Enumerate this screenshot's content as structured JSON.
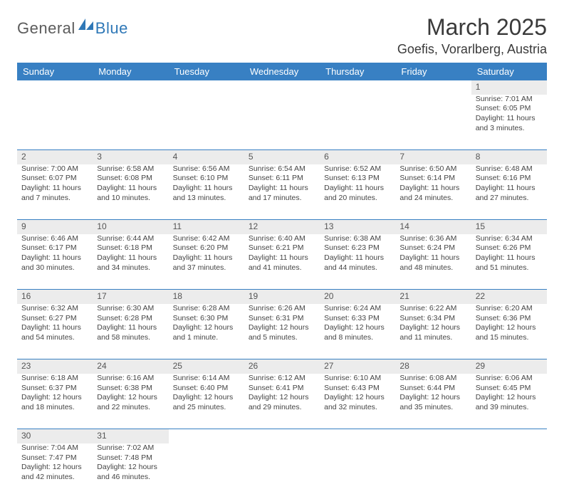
{
  "brand": {
    "part1": "General",
    "part2": "Blue"
  },
  "title": "March 2025",
  "location": "Goefis, Vorarlberg, Austria",
  "colors": {
    "header_bg": "#3880c3",
    "grey_row": "#ececec",
    "brand_blue": "#2f78b7",
    "text": "#3a3a3a"
  },
  "weekdays": [
    "Sunday",
    "Monday",
    "Tuesday",
    "Wednesday",
    "Thursday",
    "Friday",
    "Saturday"
  ],
  "weeks": [
    {
      "nums": [
        "",
        "",
        "",
        "",
        "",
        "",
        "1"
      ],
      "cells": [
        null,
        null,
        null,
        null,
        null,
        null,
        {
          "sunrise": "Sunrise: 7:01 AM",
          "sunset": "Sunset: 6:05 PM",
          "daylight": "Daylight: 11 hours and 3 minutes."
        }
      ]
    },
    {
      "nums": [
        "2",
        "3",
        "4",
        "5",
        "6",
        "7",
        "8"
      ],
      "cells": [
        {
          "sunrise": "Sunrise: 7:00 AM",
          "sunset": "Sunset: 6:07 PM",
          "daylight": "Daylight: 11 hours and 7 minutes."
        },
        {
          "sunrise": "Sunrise: 6:58 AM",
          "sunset": "Sunset: 6:08 PM",
          "daylight": "Daylight: 11 hours and 10 minutes."
        },
        {
          "sunrise": "Sunrise: 6:56 AM",
          "sunset": "Sunset: 6:10 PM",
          "daylight": "Daylight: 11 hours and 13 minutes."
        },
        {
          "sunrise": "Sunrise: 6:54 AM",
          "sunset": "Sunset: 6:11 PM",
          "daylight": "Daylight: 11 hours and 17 minutes."
        },
        {
          "sunrise": "Sunrise: 6:52 AM",
          "sunset": "Sunset: 6:13 PM",
          "daylight": "Daylight: 11 hours and 20 minutes."
        },
        {
          "sunrise": "Sunrise: 6:50 AM",
          "sunset": "Sunset: 6:14 PM",
          "daylight": "Daylight: 11 hours and 24 minutes."
        },
        {
          "sunrise": "Sunrise: 6:48 AM",
          "sunset": "Sunset: 6:16 PM",
          "daylight": "Daylight: 11 hours and 27 minutes."
        }
      ]
    },
    {
      "nums": [
        "9",
        "10",
        "11",
        "12",
        "13",
        "14",
        "15"
      ],
      "cells": [
        {
          "sunrise": "Sunrise: 6:46 AM",
          "sunset": "Sunset: 6:17 PM",
          "daylight": "Daylight: 11 hours and 30 minutes."
        },
        {
          "sunrise": "Sunrise: 6:44 AM",
          "sunset": "Sunset: 6:18 PM",
          "daylight": "Daylight: 11 hours and 34 minutes."
        },
        {
          "sunrise": "Sunrise: 6:42 AM",
          "sunset": "Sunset: 6:20 PM",
          "daylight": "Daylight: 11 hours and 37 minutes."
        },
        {
          "sunrise": "Sunrise: 6:40 AM",
          "sunset": "Sunset: 6:21 PM",
          "daylight": "Daylight: 11 hours and 41 minutes."
        },
        {
          "sunrise": "Sunrise: 6:38 AM",
          "sunset": "Sunset: 6:23 PM",
          "daylight": "Daylight: 11 hours and 44 minutes."
        },
        {
          "sunrise": "Sunrise: 6:36 AM",
          "sunset": "Sunset: 6:24 PM",
          "daylight": "Daylight: 11 hours and 48 minutes."
        },
        {
          "sunrise": "Sunrise: 6:34 AM",
          "sunset": "Sunset: 6:26 PM",
          "daylight": "Daylight: 11 hours and 51 minutes."
        }
      ]
    },
    {
      "nums": [
        "16",
        "17",
        "18",
        "19",
        "20",
        "21",
        "22"
      ],
      "cells": [
        {
          "sunrise": "Sunrise: 6:32 AM",
          "sunset": "Sunset: 6:27 PM",
          "daylight": "Daylight: 11 hours and 54 minutes."
        },
        {
          "sunrise": "Sunrise: 6:30 AM",
          "sunset": "Sunset: 6:28 PM",
          "daylight": "Daylight: 11 hours and 58 minutes."
        },
        {
          "sunrise": "Sunrise: 6:28 AM",
          "sunset": "Sunset: 6:30 PM",
          "daylight": "Daylight: 12 hours and 1 minute."
        },
        {
          "sunrise": "Sunrise: 6:26 AM",
          "sunset": "Sunset: 6:31 PM",
          "daylight": "Daylight: 12 hours and 5 minutes."
        },
        {
          "sunrise": "Sunrise: 6:24 AM",
          "sunset": "Sunset: 6:33 PM",
          "daylight": "Daylight: 12 hours and 8 minutes."
        },
        {
          "sunrise": "Sunrise: 6:22 AM",
          "sunset": "Sunset: 6:34 PM",
          "daylight": "Daylight: 12 hours and 11 minutes."
        },
        {
          "sunrise": "Sunrise: 6:20 AM",
          "sunset": "Sunset: 6:36 PM",
          "daylight": "Daylight: 12 hours and 15 minutes."
        }
      ]
    },
    {
      "nums": [
        "23",
        "24",
        "25",
        "26",
        "27",
        "28",
        "29"
      ],
      "cells": [
        {
          "sunrise": "Sunrise: 6:18 AM",
          "sunset": "Sunset: 6:37 PM",
          "daylight": "Daylight: 12 hours and 18 minutes."
        },
        {
          "sunrise": "Sunrise: 6:16 AM",
          "sunset": "Sunset: 6:38 PM",
          "daylight": "Daylight: 12 hours and 22 minutes."
        },
        {
          "sunrise": "Sunrise: 6:14 AM",
          "sunset": "Sunset: 6:40 PM",
          "daylight": "Daylight: 12 hours and 25 minutes."
        },
        {
          "sunrise": "Sunrise: 6:12 AM",
          "sunset": "Sunset: 6:41 PM",
          "daylight": "Daylight: 12 hours and 29 minutes."
        },
        {
          "sunrise": "Sunrise: 6:10 AM",
          "sunset": "Sunset: 6:43 PM",
          "daylight": "Daylight: 12 hours and 32 minutes."
        },
        {
          "sunrise": "Sunrise: 6:08 AM",
          "sunset": "Sunset: 6:44 PM",
          "daylight": "Daylight: 12 hours and 35 minutes."
        },
        {
          "sunrise": "Sunrise: 6:06 AM",
          "sunset": "Sunset: 6:45 PM",
          "daylight": "Daylight: 12 hours and 39 minutes."
        }
      ]
    },
    {
      "nums": [
        "30",
        "31",
        "",
        "",
        "",
        "",
        ""
      ],
      "cells": [
        {
          "sunrise": "Sunrise: 7:04 AM",
          "sunset": "Sunset: 7:47 PM",
          "daylight": "Daylight: 12 hours and 42 minutes."
        },
        {
          "sunrise": "Sunrise: 7:02 AM",
          "sunset": "Sunset: 7:48 PM",
          "daylight": "Daylight: 12 hours and 46 minutes."
        },
        null,
        null,
        null,
        null,
        null
      ]
    }
  ]
}
